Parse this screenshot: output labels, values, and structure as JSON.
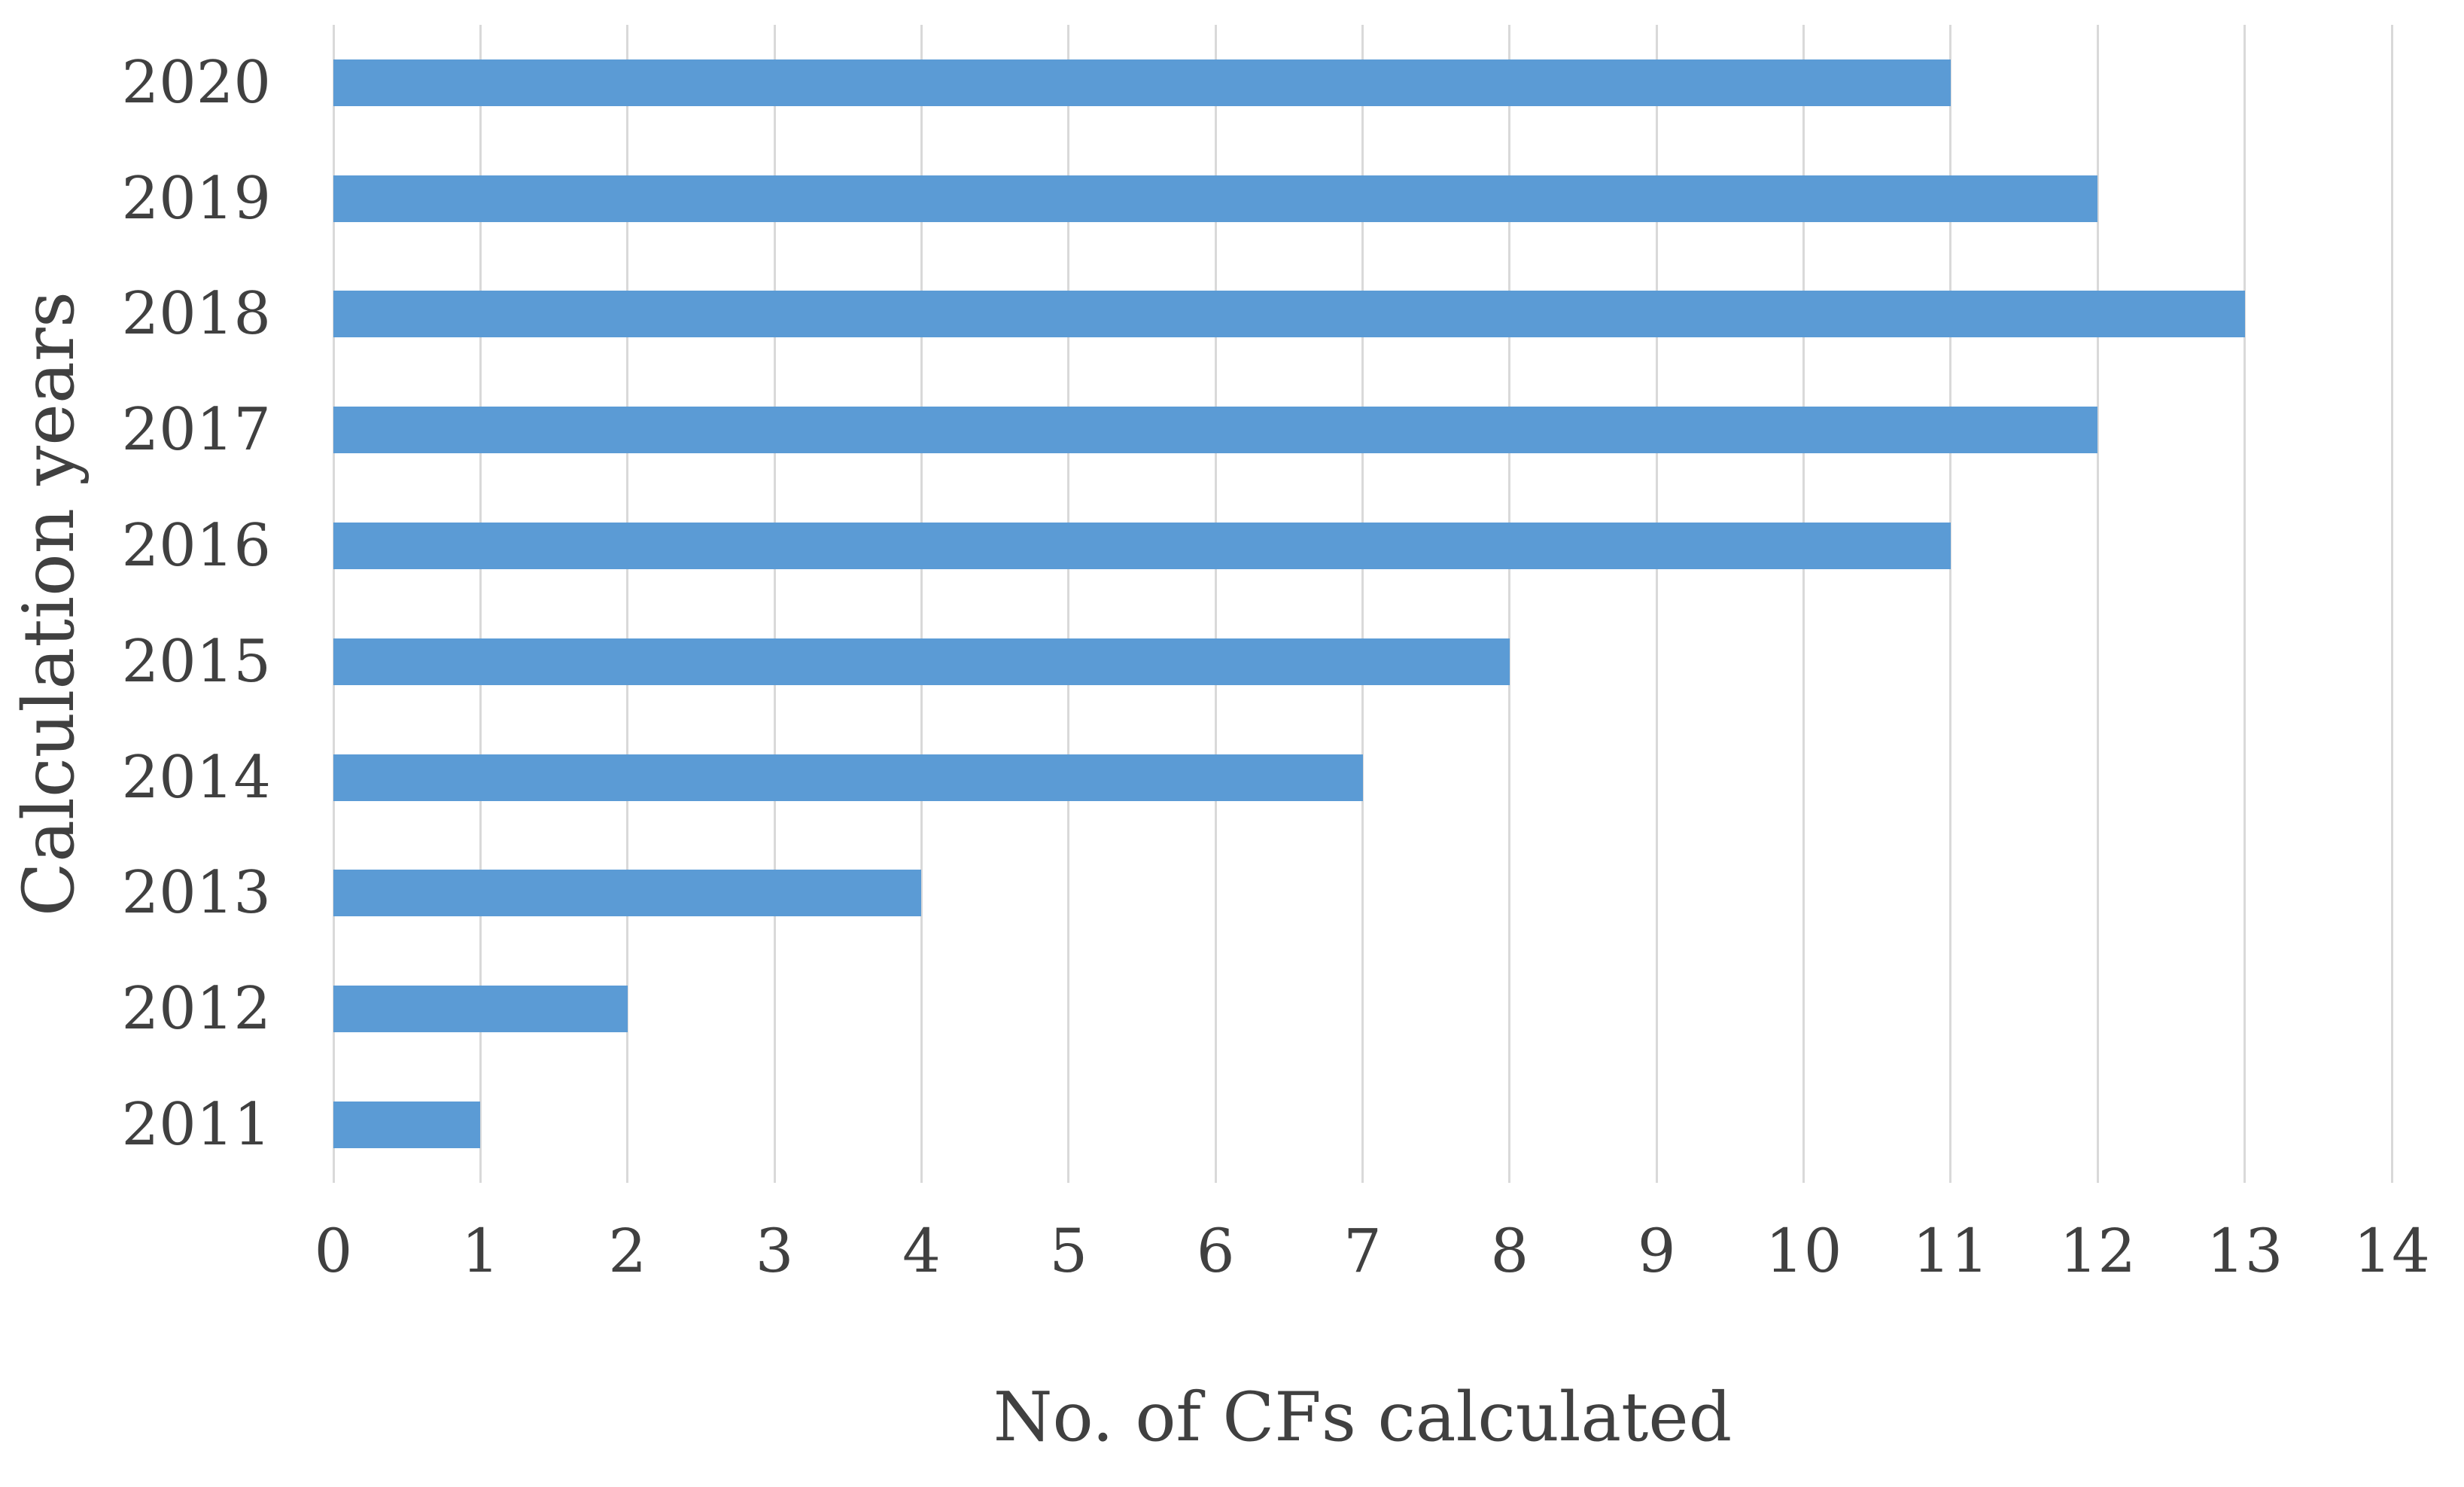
{
  "figure": {
    "background": "#FFFFFF"
  },
  "chart_data": {
    "type": "bar",
    "orientation": "horizontal",
    "title": "",
    "xlabel": "No. of CFs calculated",
    "ylabel": "Calculation years",
    "categories": [
      "2020",
      "2019",
      "2018",
      "2017",
      "2016",
      "2015",
      "2014",
      "2013",
      "2012",
      "2011"
    ],
    "values": [
      11,
      12,
      13,
      12,
      11,
      8,
      7,
      4,
      2,
      1
    ],
    "xlim": [
      0,
      14
    ],
    "xticks": [
      0,
      1,
      2,
      3,
      4,
      5,
      6,
      7,
      8,
      9,
      10,
      11,
      12,
      13,
      14
    ],
    "grid": "vertical-gridlines-on",
    "legend": "none",
    "bar_color": "#5B9BD5",
    "gridline_color": "#D9D9D9",
    "text_color": "#404040"
  }
}
